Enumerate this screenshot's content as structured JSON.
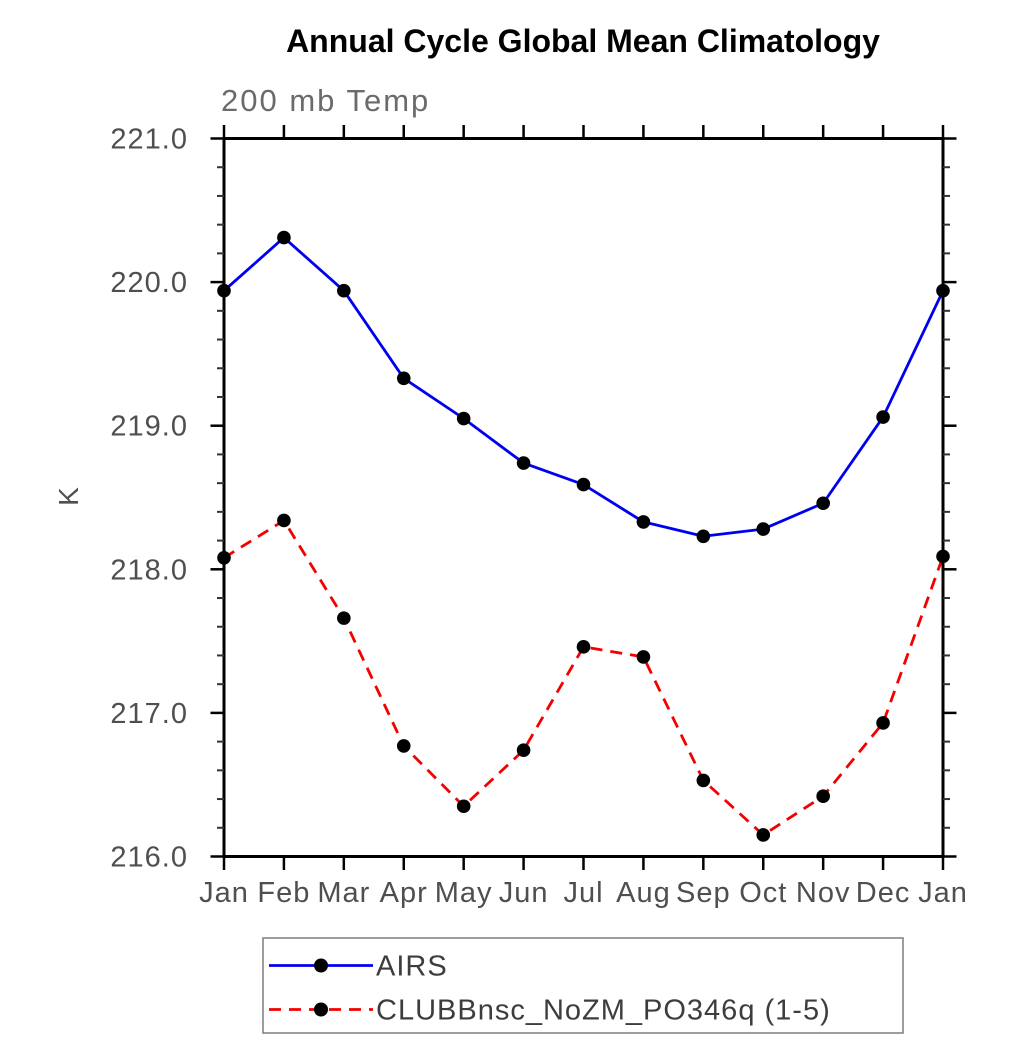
{
  "title": "Annual Cycle Global Mean Climatology",
  "subtitle": "200 mb Temp",
  "ylabel": "K",
  "chart_data": {
    "type": "line",
    "title": "Annual Cycle Global Mean Climatology",
    "subtitle": "200 mb Temp",
    "xlabel": "",
    "ylabel": "K",
    "categories": [
      "Jan",
      "Feb",
      "Mar",
      "Apr",
      "May",
      "Jun",
      "Jul",
      "Aug",
      "Sep",
      "Oct",
      "Nov",
      "Dec",
      "Jan"
    ],
    "series": [
      {
        "name": "AIRS",
        "line_style": "solid",
        "color": "#0000f0",
        "marker": "circle",
        "marker_color": "#000000",
        "values": [
          219.94,
          220.31,
          219.94,
          219.33,
          219.05,
          218.74,
          218.59,
          218.33,
          218.23,
          218.28,
          218.46,
          219.06,
          219.94
        ]
      },
      {
        "name": "CLUBBnsc_NoZM_PO346q (1-5)",
        "line_style": "dashed",
        "color": "#f40000",
        "marker": "circle",
        "marker_color": "#000000",
        "values": [
          218.08,
          218.34,
          217.66,
          216.77,
          216.35,
          216.74,
          217.46,
          217.39,
          216.53,
          216.15,
          216.42,
          216.93,
          218.09
        ]
      }
    ],
    "ylim": [
      216.0,
      221.0
    ],
    "ytick_major_step": 1.0,
    "ytick_minor_step": 0.2,
    "ytick_label_format": "one_decimal",
    "grid": false,
    "legend_position": "bottom"
  },
  "colors": {
    "axis": "#000000",
    "minor_tick": "#333333",
    "tick_label": "#4f4f4f",
    "legend_border": "#7d7d7d"
  }
}
